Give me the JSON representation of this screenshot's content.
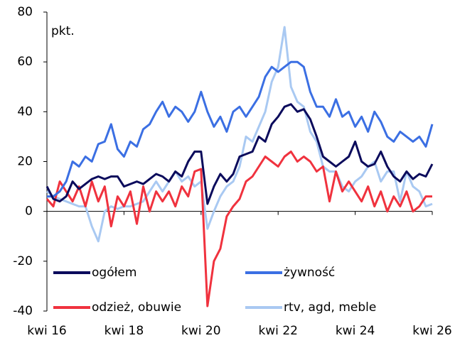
{
  "chart_data": {
    "type": "line",
    "annotation": "pkt.",
    "categories": [
      "kwi 16",
      null,
      null,
      null,
      null,
      null,
      null,
      null,
      null,
      null,
      null,
      null,
      "kwi 18",
      null,
      null,
      null,
      null,
      null,
      null,
      null,
      null,
      null,
      null,
      null,
      "kwi 20",
      null,
      null,
      null,
      null,
      null,
      null,
      null,
      null,
      null,
      null,
      null,
      "kwi 22",
      null,
      null,
      null,
      null,
      null,
      null,
      null,
      null,
      null,
      null,
      null,
      "kwi 24",
      null,
      null,
      null,
      null,
      null,
      null,
      null,
      null,
      null,
      null,
      null,
      "kwi 26"
    ],
    "series": [
      {
        "name": "ogółem",
        "color": "#0b0b5c",
        "values": [
          10,
          5,
          4,
          6,
          12,
          9,
          11,
          13,
          14,
          13,
          14,
          14,
          10,
          11,
          12,
          11,
          13,
          15,
          14,
          12,
          16,
          14,
          20,
          24,
          24,
          3,
          10,
          15,
          12,
          15,
          22,
          23,
          24,
          30,
          28,
          35,
          38,
          42,
          43,
          40,
          41,
          37,
          30,
          22,
          20,
          18,
          20,
          22,
          28,
          20,
          18,
          19,
          24,
          18,
          14,
          12,
          16,
          13,
          15,
          14,
          19
        ]
      },
      {
        "name": "żywność",
        "color": "#3b6fe3",
        "values": [
          6,
          6,
          8,
          12,
          20,
          18,
          22,
          20,
          27,
          28,
          35,
          25,
          22,
          28,
          26,
          33,
          35,
          40,
          44,
          38,
          42,
          40,
          36,
          40,
          48,
          40,
          34,
          38,
          32,
          40,
          42,
          38,
          42,
          46,
          54,
          58,
          56,
          58,
          60,
          60,
          58,
          48,
          42,
          42,
          38,
          45,
          38,
          40,
          34,
          38,
          32,
          40,
          36,
          30,
          28,
          32,
          30,
          28,
          30,
          26,
          35
        ]
      },
      {
        "name": "odzież, obuwie",
        "color": "#f0323e",
        "values": [
          5,
          2,
          12,
          8,
          4,
          10,
          2,
          12,
          4,
          10,
          -6,
          6,
          2,
          8,
          -5,
          10,
          0,
          8,
          4,
          8,
          2,
          10,
          6,
          16,
          17,
          -38,
          -20,
          -15,
          -2,
          2,
          5,
          12,
          14,
          18,
          22,
          20,
          18,
          22,
          24,
          20,
          22,
          20,
          16,
          18,
          4,
          16,
          8,
          12,
          8,
          4,
          10,
          2,
          8,
          0,
          6,
          2,
          8,
          0,
          2,
          6,
          6
        ]
      },
      {
        "name": "rtv, agd, meble",
        "color": "#a9c9f2",
        "values": [
          8,
          6,
          5,
          4,
          3,
          2,
          2,
          -6,
          -12,
          0,
          2,
          1,
          2,
          2,
          3,
          4,
          8,
          12,
          8,
          12,
          16,
          12,
          14,
          10,
          12,
          -7,
          0,
          6,
          10,
          12,
          18,
          30,
          28,
          34,
          40,
          52,
          58,
          74,
          50,
          44,
          42,
          32,
          28,
          18,
          16,
          16,
          10,
          8,
          12,
          14,
          18,
          20,
          12,
          16,
          16,
          4,
          16,
          10,
          8,
          2,
          3
        ]
      }
    ],
    "ylim": [
      -40,
      80
    ],
    "yticks": [
      -40,
      -20,
      0,
      20,
      40,
      60,
      80
    ],
    "grid": false
  }
}
